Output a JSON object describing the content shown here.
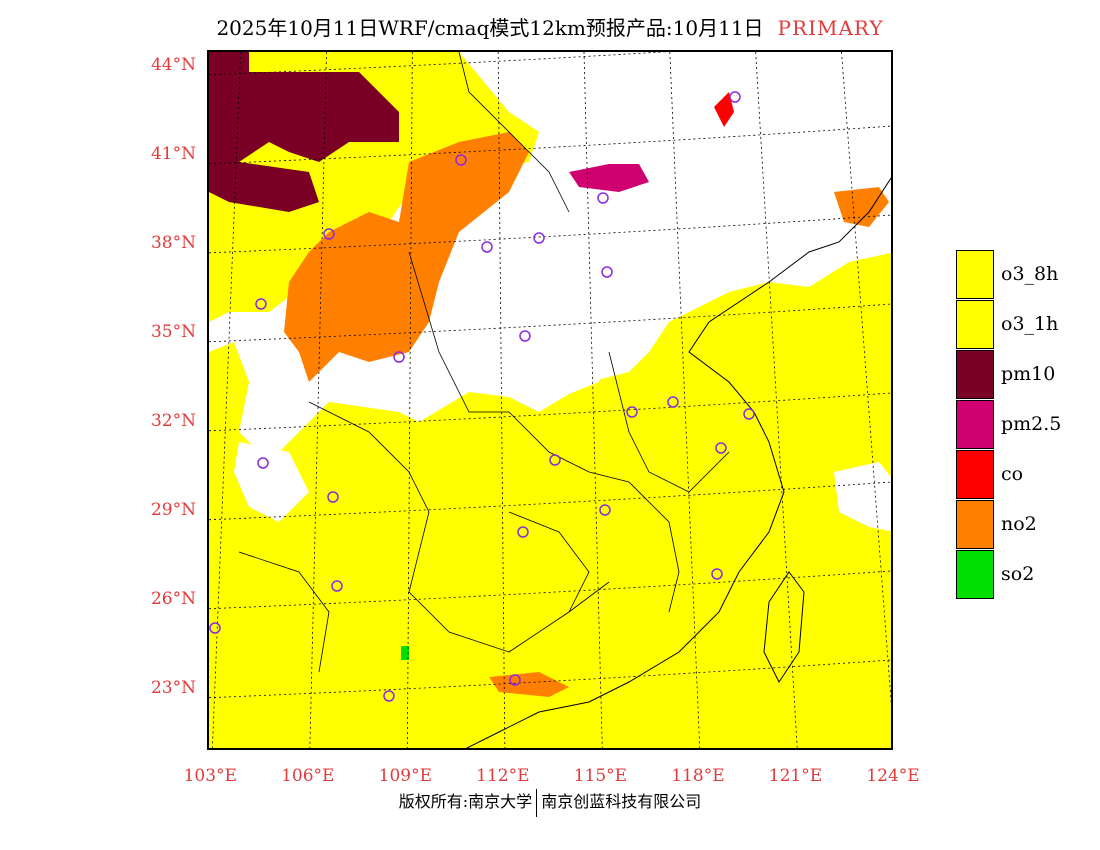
{
  "title": {
    "main": "2025年10月11日WRF/cmaq模式12km预报产品:10月11日",
    "tag": "PRIMARY"
  },
  "map": {
    "lat_labels": [
      "44°N",
      "41°N",
      "38°N",
      "35°N",
      "32°N",
      "29°N",
      "26°N",
      "23°N"
    ],
    "lon_labels": [
      "103°E",
      "106°E",
      "109°E",
      "112°E",
      "115°E",
      "118°E",
      "121°E",
      "124°E"
    ],
    "lat_values": [
      44,
      41,
      38,
      35,
      32,
      29,
      26,
      23
    ],
    "lon_values": [
      103,
      106,
      109,
      112,
      115,
      118,
      121,
      124
    ],
    "lat_range": [
      20.9,
      44.5
    ],
    "lon_range": [
      102.9,
      124
    ]
  },
  "legend": {
    "items": [
      {
        "label": "o3_8h",
        "color": "#ffff00"
      },
      {
        "label": "o3_1h",
        "color": "#ffff00"
      },
      {
        "label": "pm10",
        "color": "#7a0026"
      },
      {
        "label": "pm2.5",
        "color": "#d00070"
      },
      {
        "label": "co",
        "color": "#ff0000"
      },
      {
        "label": "no2",
        "color": "#ff8000"
      },
      {
        "label": "so2",
        "color": "#00e000"
      }
    ]
  },
  "footer": {
    "left": "版权所有:南京大学",
    "right": "南京创蓝科技有限公司"
  }
}
